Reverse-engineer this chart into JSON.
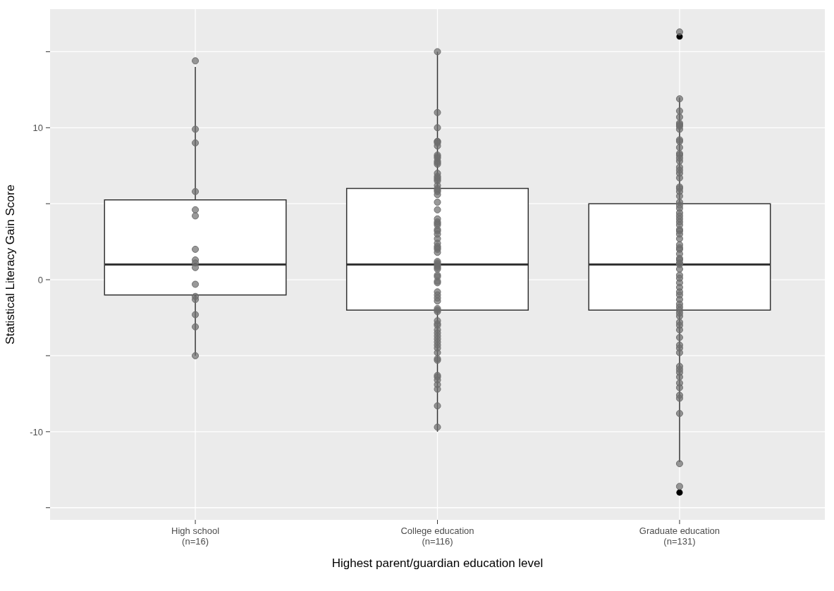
{
  "chart_data": {
    "type": "box",
    "xlabel": "Highest parent/guardian education level",
    "ylabel": "Statistical Literacy Gain Score",
    "categories": [
      "High school\n(n=16)",
      "College education\n(n=116)",
      "Graduate education\n(n=131)"
    ],
    "ylim": [
      -15.8,
      17.8
    ],
    "yticks": [
      {
        "value": -15,
        "label": null
      },
      -10,
      {
        "value": -5,
        "label": null
      },
      0,
      {
        "value": 5,
        "label": null
      },
      10,
      {
        "value": 15,
        "label": null
      }
    ],
    "grid": true,
    "series": [
      {
        "type": "box",
        "color": "#ffffff",
        "boxes": [
          {
            "low": -5,
            "q1": -1,
            "median": 1,
            "q3": 5.25,
            "high": 14
          },
          {
            "low": -10,
            "q1": -2,
            "median": 1,
            "q3": 6,
            "high": 15
          },
          {
            "low": -12,
            "q1": -2,
            "median": 1,
            "q3": 5,
            "high": 12,
            "outliers": [
              16,
              -14
            ]
          }
        ]
      },
      {
        "type": "scatter",
        "color": "#6e6e6e",
        "marker": "circle",
        "x": [
          "High school\n(n=16)",
          "High school\n(n=16)",
          "High school\n(n=16)",
          "High school\n(n=16)",
          "High school\n(n=16)",
          "High school\n(n=16)",
          "High school\n(n=16)",
          "High school\n(n=16)",
          "High school\n(n=16)",
          "High school\n(n=16)",
          "High school\n(n=16)",
          "High school\n(n=16)",
          "High school\n(n=16)",
          "High school\n(n=16)",
          "High school\n(n=16)",
          "High school\n(n=16)",
          "College education\n(n=116)",
          "College education\n(n=116)",
          "College education\n(n=116)",
          "College education\n(n=116)",
          "College education\n(n=116)",
          "College education\n(n=116)",
          "College education\n(n=116)",
          "College education\n(n=116)",
          "College education\n(n=116)",
          "College education\n(n=116)",
          "College education\n(n=116)",
          "College education\n(n=116)",
          "College education\n(n=116)",
          "College education\n(n=116)",
          "College education\n(n=116)",
          "College education\n(n=116)",
          "College education\n(n=116)",
          "College education\n(n=116)",
          "College education\n(n=116)",
          "College education\n(n=116)",
          "College education\n(n=116)",
          "College education\n(n=116)",
          "College education\n(n=116)",
          "College education\n(n=116)",
          "College education\n(n=116)",
          "College education\n(n=116)",
          "College education\n(n=116)",
          "College education\n(n=116)",
          "College education\n(n=116)",
          "College education\n(n=116)",
          "College education\n(n=116)",
          "College education\n(n=116)",
          "College education\n(n=116)",
          "College education\n(n=116)",
          "College education\n(n=116)",
          "College education\n(n=116)",
          "College education\n(n=116)",
          "College education\n(n=116)",
          "College education\n(n=116)",
          "College education\n(n=116)",
          "College education\n(n=116)",
          "College education\n(n=116)",
          "College education\n(n=116)",
          "College education\n(n=116)",
          "College education\n(n=116)",
          "College education\n(n=116)",
          "College education\n(n=116)",
          "College education\n(n=116)",
          "College education\n(n=116)",
          "College education\n(n=116)",
          "College education\n(n=116)",
          "College education\n(n=116)",
          "College education\n(n=116)",
          "College education\n(n=116)",
          "College education\n(n=116)",
          "College education\n(n=116)",
          "College education\n(n=116)",
          "College education\n(n=116)",
          "College education\n(n=116)",
          "College education\n(n=116)",
          "College education\n(n=116)",
          "College education\n(n=116)",
          "College education\n(n=116)",
          "College education\n(n=116)",
          "College education\n(n=116)",
          "College education\n(n=116)",
          "College education\n(n=116)",
          "College education\n(n=116)",
          "College education\n(n=116)",
          "College education\n(n=116)",
          "College education\n(n=116)",
          "College education\n(n=116)",
          "College education\n(n=116)",
          "College education\n(n=116)",
          "College education\n(n=116)",
          "Graduate education\n(n=131)",
          "Graduate education\n(n=131)",
          "Graduate education\n(n=131)",
          "Graduate education\n(n=131)",
          "Graduate education\n(n=131)",
          "Graduate education\n(n=131)",
          "Graduate education\n(n=131)",
          "Graduate education\n(n=131)",
          "Graduate education\n(n=131)",
          "Graduate education\n(n=131)",
          "Graduate education\n(n=131)",
          "Graduate education\n(n=131)",
          "Graduate education\n(n=131)",
          "Graduate education\n(n=131)",
          "Graduate education\n(n=131)",
          "Graduate education\n(n=131)",
          "Graduate education\n(n=131)",
          "Graduate education\n(n=131)",
          "Graduate education\n(n=131)",
          "Graduate education\n(n=131)",
          "Graduate education\n(n=131)",
          "Graduate education\n(n=131)",
          "Graduate education\n(n=131)",
          "Graduate education\n(n=131)",
          "Graduate education\n(n=131)",
          "Graduate education\n(n=131)",
          "Graduate education\n(n=131)",
          "Graduate education\n(n=131)",
          "Graduate education\n(n=131)",
          "Graduate education\n(n=131)",
          "Graduate education\n(n=131)",
          "Graduate education\n(n=131)",
          "Graduate education\n(n=131)",
          "Graduate education\n(n=131)",
          "Graduate education\n(n=131)",
          "Graduate education\n(n=131)",
          "Graduate education\n(n=131)",
          "Graduate education\n(n=131)",
          "Graduate education\n(n=131)",
          "Graduate education\n(n=131)",
          "Graduate education\n(n=131)",
          "Graduate education\n(n=131)",
          "Graduate education\n(n=131)",
          "Graduate education\n(n=131)",
          "Graduate education\n(n=131)",
          "Graduate education\n(n=131)",
          "Graduate education\n(n=131)",
          "Graduate education\n(n=131)",
          "Graduate education\n(n=131)",
          "Graduate education\n(n=131)",
          "Graduate education\n(n=131)",
          "Graduate education\n(n=131)",
          "Graduate education\n(n=131)",
          "Graduate education\n(n=131)",
          "Graduate education\n(n=131)",
          "Graduate education\n(n=131)",
          "Graduate education\n(n=131)",
          "Graduate education\n(n=131)",
          "Graduate education\n(n=131)",
          "Graduate education\n(n=131)",
          "Graduate education\n(n=131)",
          "Graduate education\n(n=131)",
          "Graduate education\n(n=131)",
          "Graduate education\n(n=131)",
          "Graduate education\n(n=131)",
          "Graduate education\n(n=131)",
          "Graduate education\n(n=131)",
          "Graduate education\n(n=131)",
          "Graduate education\n(n=131)",
          "Graduate education\n(n=131)",
          "Graduate education\n(n=131)",
          "Graduate education\n(n=131)",
          "Graduate education\n(n=131)",
          "Graduate education\n(n=131)"
        ],
        "values": [
          14.4,
          9.9,
          9.0,
          5.8,
          4.6,
          4.2,
          2.0,
          1.1,
          1.3,
          0.8,
          -0.3,
          -1.3,
          -1.1,
          -2.3,
          -3.1,
          -5.0,
          15.0,
          11.0,
          10.0,
          9.1,
          9.1,
          9.0,
          8.8,
          8.2,
          8.1,
          8.0,
          7.8,
          7.7,
          7.6,
          7.0,
          6.8,
          6.7,
          6.6,
          6.5,
          6.2,
          6.0,
          5.9,
          5.8,
          5.6,
          5.1,
          4.6,
          4.0,
          3.8,
          3.7,
          3.6,
          3.3,
          3.2,
          3.0,
          2.7,
          2.4,
          2.2,
          2.1,
          2.0,
          1.8,
          1.2,
          1.1,
          1.0,
          0.9,
          0.8,
          0.7,
          0.3,
          0.2,
          -0.1,
          -0.2,
          -0.8,
          -1.0,
          -1.2,
          -1.4,
          -1.9,
          -2.0,
          -2.1,
          -2.7,
          -2.9,
          -3.0,
          -3.3,
          -3.5,
          -3.7,
          -3.9,
          -4.1,
          -4.3,
          -4.5,
          -4.8,
          -5.2,
          -5.3,
          -6.3,
          -6.4,
          -6.6,
          -6.9,
          -7.2,
          -8.3,
          -9.7,
          16.3,
          11.9,
          11.1,
          10.7,
          10.3,
          10.2,
          10.1,
          9.9,
          9.2,
          9.1,
          8.7,
          8.3,
          8.2,
          8.0,
          7.8,
          7.4,
          7.2,
          7.0,
          6.7,
          6.1,
          6.0,
          5.8,
          5.5,
          5.1,
          4.9,
          4.7,
          4.4,
          4.2,
          4.0,
          3.8,
          3.6,
          3.3,
          3.2,
          3.0,
          2.7,
          2.3,
          2.1,
          2.0,
          1.7,
          1.4,
          1.3,
          1.1,
          1.0,
          0.7,
          0.3,
          0.1,
          -0.2,
          -0.5,
          -0.8,
          -1.0,
          -1.3,
          -1.6,
          -1.8,
          -2.0,
          -2.2,
          -2.4,
          -2.8,
          -3.0,
          -3.3,
          -3.8,
          -4.3,
          -4.5,
          -4.8,
          -5.7,
          -5.9,
          -6.1,
          -6.4,
          -6.8,
          -7.1,
          -7.6,
          -7.8,
          -8.8,
          -12.1,
          -13.6
        ]
      }
    ]
  }
}
